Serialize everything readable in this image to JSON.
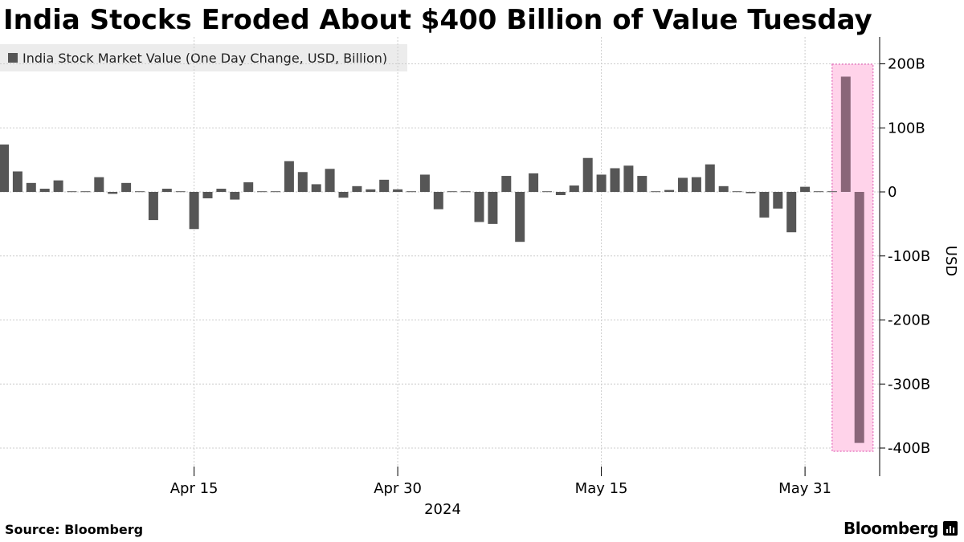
{
  "title": "India Stocks Eroded About $400 Billion of Value Tuesday",
  "legend": {
    "label": "India Stock Market Value (One Day Change, USD, Billion)",
    "color": "#565656"
  },
  "footer": {
    "source": "Source:  Bloomberg",
    "brand": "Bloomberg",
    "brand_icon": "bloomberg-chart-icon"
  },
  "colors": {
    "bar": "#565656",
    "highlight_fill": "#ffd3ea",
    "highlight_border": "#e87fc3",
    "highlight_bar": "#8a6679",
    "grid": "#cccccc",
    "axis": "#000000"
  },
  "chart_data": {
    "type": "bar",
    "series": [
      {
        "name": "India Stock Market Value (One Day Change, USD, Billion)",
        "values": [
          74,
          32,
          14,
          5,
          18,
          1,
          1,
          23,
          -3,
          14,
          1,
          -44,
          5,
          1,
          -58,
          -10,
          5,
          -12,
          15,
          1,
          1,
          48,
          31,
          12,
          36,
          -9,
          9,
          4,
          19,
          4,
          1,
          27,
          -27,
          1,
          1,
          -47,
          -50,
          25,
          -78,
          29,
          1,
          -5,
          10,
          53,
          27,
          37,
          41,
          25,
          1,
          3,
          22,
          23,
          43,
          9,
          1,
          -2,
          -40,
          -26,
          -63,
          8,
          1,
          1,
          180,
          -392
        ]
      }
    ],
    "highlight": {
      "from_index": 62,
      "to_index": 63
    },
    "x_ticks": [
      {
        "label": "Apr 15",
        "index": 14
      },
      {
        "label": "Apr 30",
        "index": 29
      },
      {
        "label": "May 15",
        "index": 44
      },
      {
        "label": "May 31",
        "index": 59
      }
    ],
    "year_label": "2024",
    "y_ticks": [
      {
        "value": 200,
        "label": "200B"
      },
      {
        "value": 100,
        "label": "100B"
      },
      {
        "value": 0,
        "label": "0"
      },
      {
        "value": -100,
        "label": "-100B"
      },
      {
        "value": -200,
        "label": "-200B"
      },
      {
        "value": -300,
        "label": "-300B"
      },
      {
        "value": -400,
        "label": "-400B"
      }
    ],
    "ylim": [
      -445,
      240
    ],
    "ylabel": "USD",
    "y_axis_position": "right",
    "grid": true
  }
}
